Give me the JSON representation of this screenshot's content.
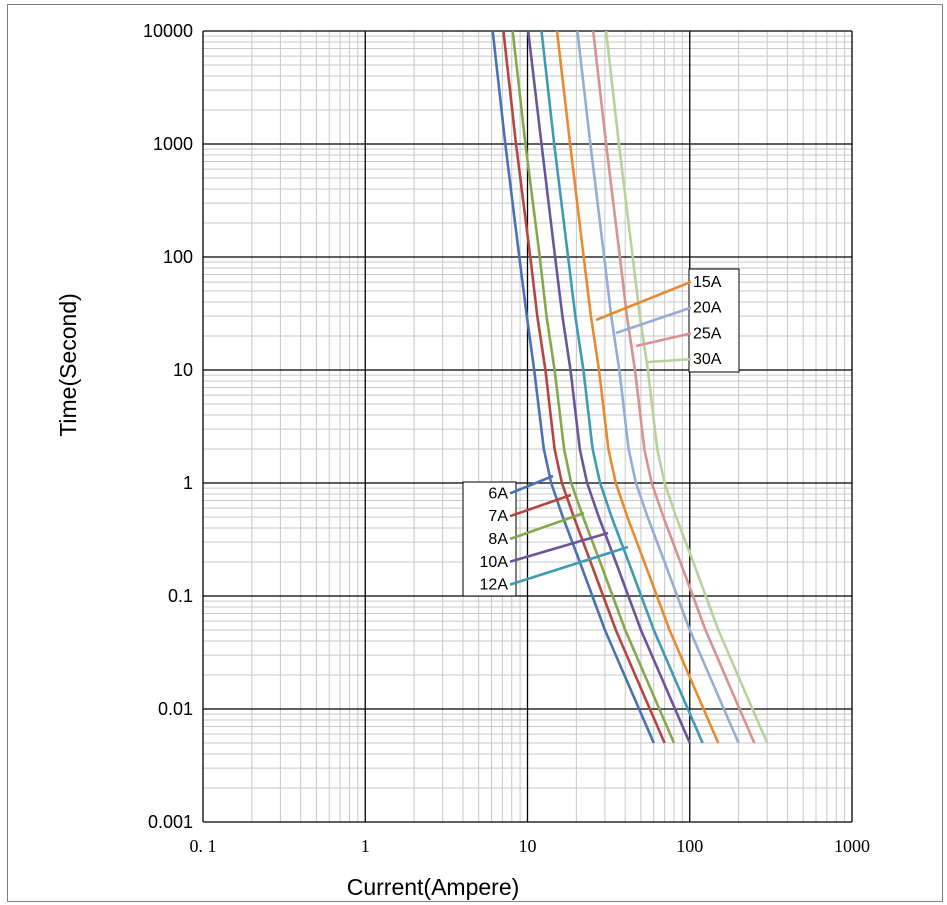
{
  "chart_data": {
    "type": "line",
    "xlabel": "Current(Ampere)",
    "ylabel": "Time(Second)",
    "x_scale": "log",
    "y_scale": "log",
    "xlim": [
      0.1,
      1000
    ],
    "ylim": [
      0.001,
      10000
    ],
    "grid": true,
    "x_tick_labels": [
      "0. 1",
      "1",
      "10",
      "100",
      "1000"
    ],
    "y_tick_labels": [
      "0.001",
      "0.01",
      "0.1",
      "1",
      "10",
      "100",
      "1000",
      "10000"
    ],
    "legend_groups": [
      {
        "position": "center-left",
        "labels": [
          "6A",
          "7A",
          "8A",
          "10A",
          "12A"
        ]
      },
      {
        "position": "center-right",
        "labels": [
          "15A",
          "20A",
          "25A",
          "30A"
        ]
      }
    ],
    "series": [
      {
        "name": "6A",
        "color": "#4a71b4",
        "points": [
          [
            6.1,
            10000
          ],
          [
            7.3,
            1000
          ],
          [
            8.9,
            100
          ],
          [
            9.9,
            30
          ],
          [
            11.0,
            10
          ],
          [
            12.6,
            2
          ],
          [
            14.0,
            1
          ],
          [
            16.5,
            0.5
          ],
          [
            21.0,
            0.2
          ],
          [
            30.0,
            0.05
          ],
          [
            45.0,
            0.013
          ],
          [
            60.0,
            0.005
          ]
        ]
      },
      {
        "name": "7A",
        "color": "#b5453f",
        "points": [
          [
            7.1,
            10000
          ],
          [
            8.5,
            1000
          ],
          [
            10.4,
            100
          ],
          [
            11.5,
            30
          ],
          [
            12.9,
            10
          ],
          [
            14.7,
            2
          ],
          [
            16.3,
            1
          ],
          [
            19.3,
            0.5
          ],
          [
            24.5,
            0.2
          ],
          [
            35.0,
            0.05
          ],
          [
            52.5,
            0.013
          ],
          [
            70.0,
            0.005
          ]
        ]
      },
      {
        "name": "8A",
        "color": "#84a94a",
        "points": [
          [
            8.1,
            10000
          ],
          [
            9.7,
            1000
          ],
          [
            11.9,
            100
          ],
          [
            13.1,
            30
          ],
          [
            14.7,
            10
          ],
          [
            16.8,
            2
          ],
          [
            18.6,
            1
          ],
          [
            22.0,
            0.5
          ],
          [
            28.0,
            0.2
          ],
          [
            40.0,
            0.05
          ],
          [
            60.0,
            0.013
          ],
          [
            80.0,
            0.005
          ]
        ]
      },
      {
        "name": "10A",
        "color": "#6b559a",
        "points": [
          [
            10.1,
            10000
          ],
          [
            12.2,
            1000
          ],
          [
            14.8,
            100
          ],
          [
            16.4,
            30
          ],
          [
            18.4,
            10
          ],
          [
            21.0,
            2
          ],
          [
            23.3,
            1
          ],
          [
            27.5,
            0.5
          ],
          [
            35.0,
            0.2
          ],
          [
            50.0,
            0.05
          ],
          [
            75.0,
            0.013
          ],
          [
            100.0,
            0.005
          ]
        ]
      },
      {
        "name": "12A",
        "color": "#3d9cb3",
        "points": [
          [
            12.2,
            10000
          ],
          [
            14.6,
            1000
          ],
          [
            17.8,
            100
          ],
          [
            19.7,
            30
          ],
          [
            22.1,
            10
          ],
          [
            25.2,
            2
          ],
          [
            28.0,
            1
          ],
          [
            33.0,
            0.5
          ],
          [
            42.0,
            0.2
          ],
          [
            60.0,
            0.05
          ],
          [
            90.0,
            0.013
          ],
          [
            120.0,
            0.005
          ]
        ]
      },
      {
        "name": "15A",
        "color": "#e88a33",
        "points": [
          [
            15.2,
            10000
          ],
          [
            18.3,
            1000
          ],
          [
            22.2,
            100
          ],
          [
            24.6,
            30
          ],
          [
            27.6,
            10
          ],
          [
            31.5,
            2
          ],
          [
            35.0,
            1
          ],
          [
            41.3,
            0.5
          ],
          [
            52.5,
            0.2
          ],
          [
            75.0,
            0.05
          ],
          [
            112.5,
            0.013
          ],
          [
            150.0,
            0.005
          ]
        ]
      },
      {
        "name": "20A",
        "color": "#93aed6",
        "points": [
          [
            20.3,
            10000
          ],
          [
            24.4,
            1000
          ],
          [
            29.7,
            100
          ],
          [
            32.8,
            30
          ],
          [
            36.8,
            10
          ],
          [
            42.0,
            2
          ],
          [
            46.6,
            1
          ],
          [
            55.0,
            0.5
          ],
          [
            70.0,
            0.2
          ],
          [
            100.0,
            0.05
          ],
          [
            150.0,
            0.013
          ],
          [
            200.0,
            0.005
          ]
        ]
      },
      {
        "name": "25A",
        "color": "#d8928f",
        "points": [
          [
            25.4,
            10000
          ],
          [
            30.5,
            1000
          ],
          [
            37.1,
            100
          ],
          [
            41.0,
            30
          ],
          [
            46.0,
            10
          ],
          [
            52.5,
            2
          ],
          [
            58.3,
            1
          ],
          [
            68.8,
            0.5
          ],
          [
            87.5,
            0.2
          ],
          [
            125.0,
            0.05
          ],
          [
            187.5,
            0.013
          ],
          [
            250.0,
            0.005
          ]
        ]
      },
      {
        "name": "30A",
        "color": "#b8d39a",
        "points": [
          [
            30.5,
            10000
          ],
          [
            36.6,
            1000
          ],
          [
            44.5,
            100
          ],
          [
            49.2,
            30
          ],
          [
            55.2,
            10
          ],
          [
            63.0,
            2
          ],
          [
            70.0,
            1
          ],
          [
            82.5,
            0.5
          ],
          [
            105.0,
            0.2
          ],
          [
            150.0,
            0.05
          ],
          [
            225.0,
            0.013
          ],
          [
            300.0,
            0.005
          ]
        ]
      }
    ]
  }
}
